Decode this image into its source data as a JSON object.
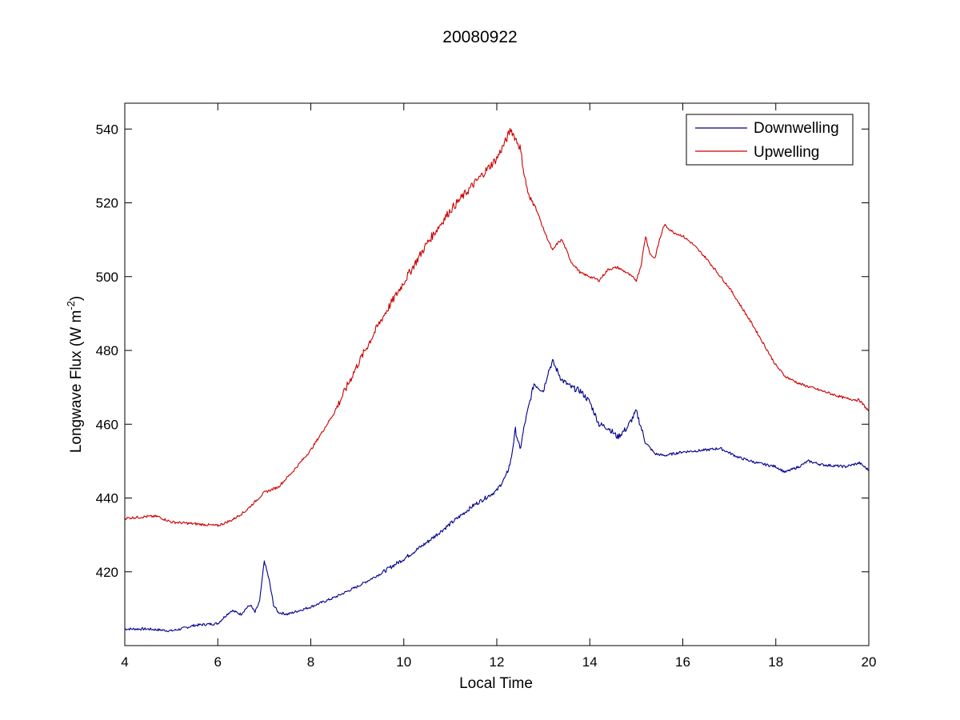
{
  "chart_data": {
    "type": "line",
    "title": "20080922",
    "xlabel": "Local Time",
    "ylabel": "Longwave Flux (W m",
    "ylabel_sup": "-2",
    "ylabel_end": ")",
    "xlim": [
      4,
      20
    ],
    "ylim": [
      400,
      547
    ],
    "xticks": [
      4,
      6,
      8,
      10,
      12,
      14,
      16,
      18,
      20
    ],
    "yticks": [
      420,
      440,
      460,
      480,
      500,
      520,
      540
    ],
    "grid": false,
    "legend_position": "top-right",
    "series": [
      {
        "name": "Downwelling",
        "color": "#00008b",
        "x": [
          4.0,
          4.5,
          5.0,
          5.2,
          5.5,
          6.0,
          6.2,
          6.3,
          6.5,
          6.6,
          6.7,
          6.8,
          6.9,
          7.0,
          7.1,
          7.2,
          7.3,
          7.5,
          8.0,
          8.5,
          9.0,
          9.5,
          10.0,
          10.5,
          11.0,
          11.5,
          12.0,
          12.2,
          12.3,
          12.4,
          12.5,
          12.6,
          12.8,
          13.0,
          13.1,
          13.2,
          13.4,
          13.6,
          13.8,
          14.0,
          14.2,
          14.4,
          14.6,
          14.8,
          15.0,
          15.2,
          15.4,
          15.6,
          16.0,
          16.5,
          16.8,
          17.2,
          17.6,
          18.0,
          18.2,
          18.5,
          18.7,
          19.0,
          19.5,
          19.8,
          20.0
        ],
        "values": [
          404.5,
          404.5,
          404.0,
          404.5,
          405.5,
          406.0,
          408.5,
          409.5,
          408.5,
          410.0,
          411.0,
          409.0,
          412.0,
          423.0,
          418.0,
          411.0,
          409.0,
          408.5,
          410.5,
          413.0,
          416.0,
          419.5,
          423.5,
          428.0,
          433.0,
          438.0,
          442.0,
          446.0,
          450.0,
          458.5,
          453.0,
          460.0,
          471.0,
          469.0,
          474.0,
          477.0,
          472.0,
          470.0,
          469.0,
          466.0,
          460.0,
          459.0,
          456.5,
          459.0,
          463.5,
          455.0,
          452.0,
          451.5,
          452.5,
          453.0,
          453.5,
          451.0,
          449.5,
          448.5,
          447.0,
          448.5,
          450.0,
          449.0,
          448.5,
          449.5,
          447.5
        ]
      },
      {
        "name": "Upwelling",
        "color": "#cc0000",
        "x": [
          4.0,
          4.5,
          4.7,
          5.0,
          5.5,
          6.0,
          6.3,
          6.6,
          7.0,
          7.3,
          7.6,
          8.0,
          8.5,
          9.0,
          9.5,
          10.0,
          10.5,
          11.0,
          11.5,
          12.0,
          12.2,
          12.3,
          12.4,
          12.5,
          12.6,
          12.7,
          12.8,
          13.0,
          13.2,
          13.3,
          13.4,
          13.6,
          13.8,
          14.0,
          14.2,
          14.4,
          14.6,
          14.8,
          15.0,
          15.1,
          15.2,
          15.3,
          15.4,
          15.5,
          15.6,
          15.8,
          16.0,
          16.2,
          16.5,
          17.0,
          17.5,
          18.0,
          18.2,
          18.5,
          19.0,
          19.5,
          19.8,
          20.0
        ],
        "values": [
          434.5,
          435.0,
          435.0,
          433.5,
          433.0,
          432.5,
          434.0,
          436.5,
          441.5,
          443.0,
          447.0,
          453.0,
          463.0,
          476.0,
          488.0,
          498.5,
          509.0,
          518.0,
          525.0,
          532.0,
          537.0,
          540.0,
          537.5,
          535.0,
          527.0,
          521.0,
          520.0,
          513.0,
          507.0,
          509.0,
          510.0,
          504.0,
          501.0,
          500.0,
          499.0,
          502.0,
          502.5,
          501.0,
          499.0,
          503.0,
          511.0,
          506.0,
          505.0,
          510.0,
          514.0,
          512.0,
          511.0,
          509.0,
          505.0,
          497.0,
          487.0,
          476.0,
          473.0,
          471.0,
          469.0,
          467.0,
          466.5,
          463.5
        ]
      }
    ]
  }
}
